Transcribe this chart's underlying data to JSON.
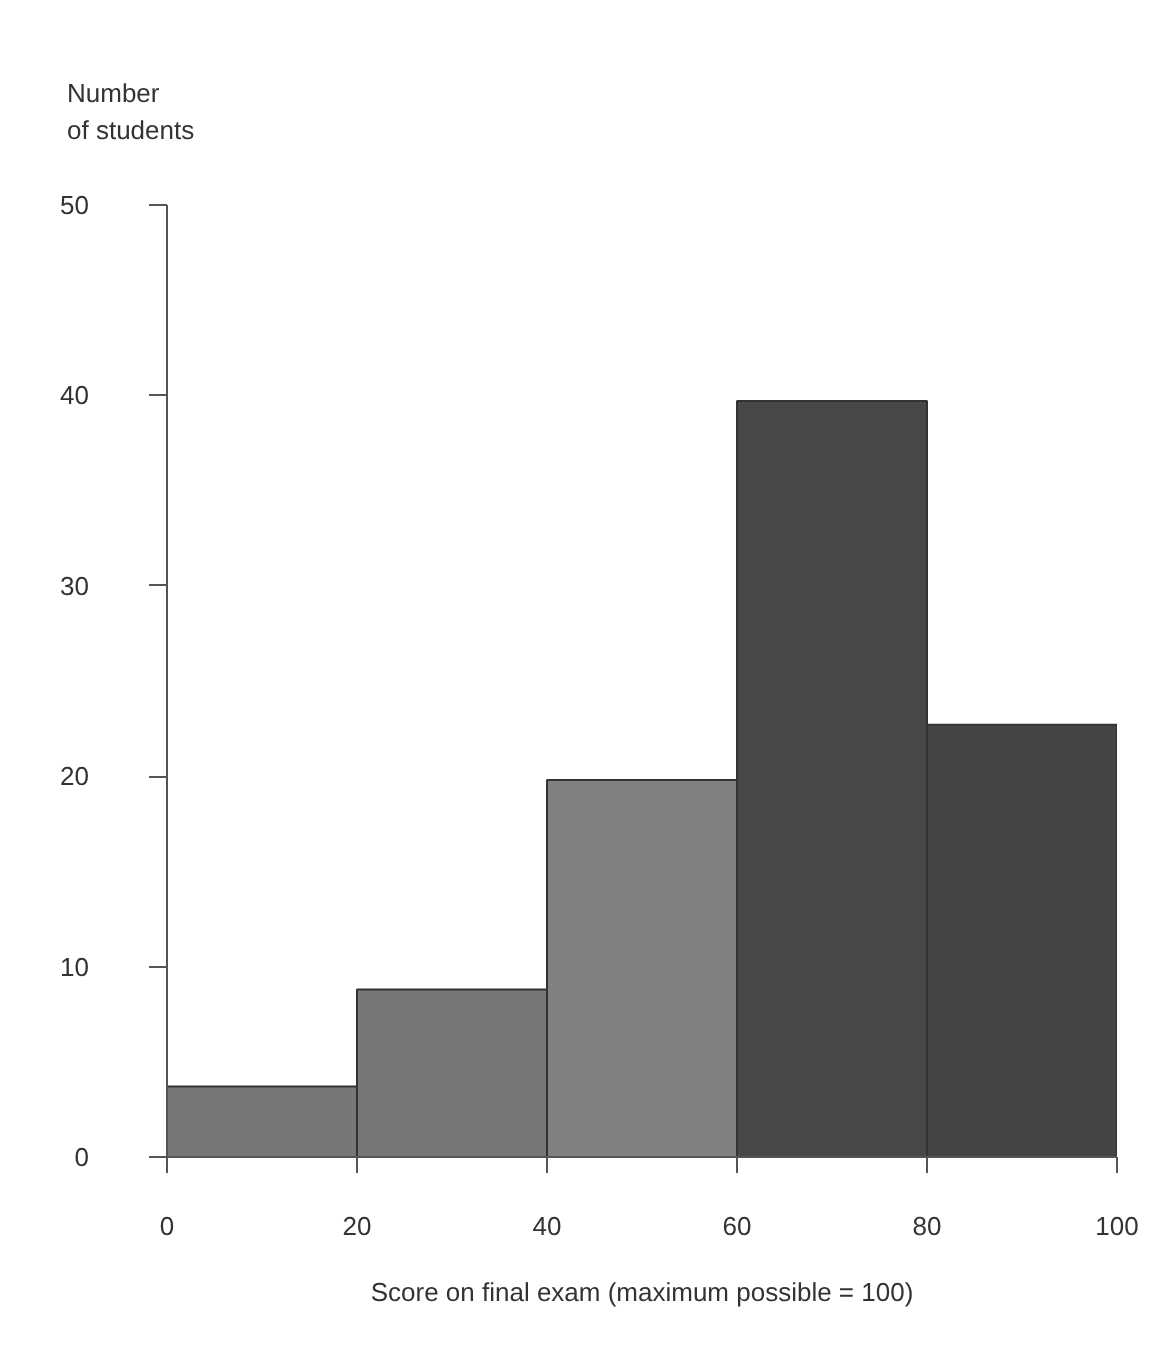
{
  "chart_data": {
    "type": "histogram",
    "xlabel": "Score on final exam (maximum possible = 100)",
    "ylabel": "Number of students",
    "bins": [
      0,
      20,
      40,
      60,
      80,
      100
    ],
    "values": [
      3.7,
      8.8,
      19.8,
      39.7,
      22.7
    ],
    "colors": [
      "#777777",
      "#777777",
      "#808080",
      "#484848",
      "#444444"
    ],
    "xlim": [
      0,
      100
    ],
    "ylim": [
      0,
      50
    ],
    "xticks": [
      0,
      20,
      40,
      60,
      80,
      100
    ],
    "yticks": [
      0,
      10,
      20,
      30,
      40,
      50
    ]
  }
}
